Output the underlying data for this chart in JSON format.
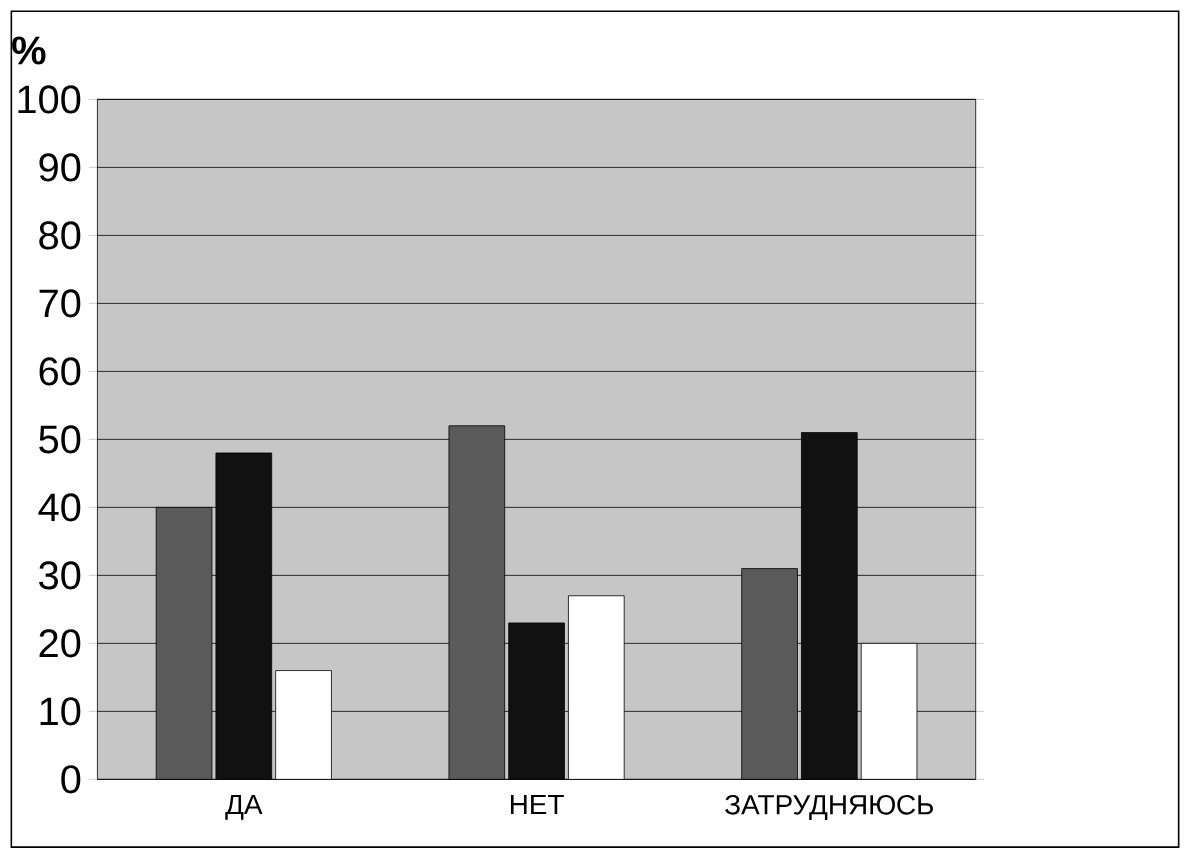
{
  "chart_data": {
    "type": "bar",
    "ylabel": "%",
    "categories": [
      "ДА",
      "НЕТ",
      "ЗАТРУДНЯЮСЬ"
    ],
    "series": [
      {
        "color": "#5a5a5a",
        "values": [
          40,
          52,
          31
        ]
      },
      {
        "color": "#111111",
        "values": [
          48,
          23,
          51
        ]
      },
      {
        "color": "#ffffff",
        "values": [
          16,
          27,
          20
        ]
      }
    ],
    "ylim": [
      0,
      100
    ],
    "yticks": [
      0,
      10,
      20,
      30,
      40,
      50,
      60,
      70,
      80,
      90,
      100
    ],
    "grid": "y"
  }
}
